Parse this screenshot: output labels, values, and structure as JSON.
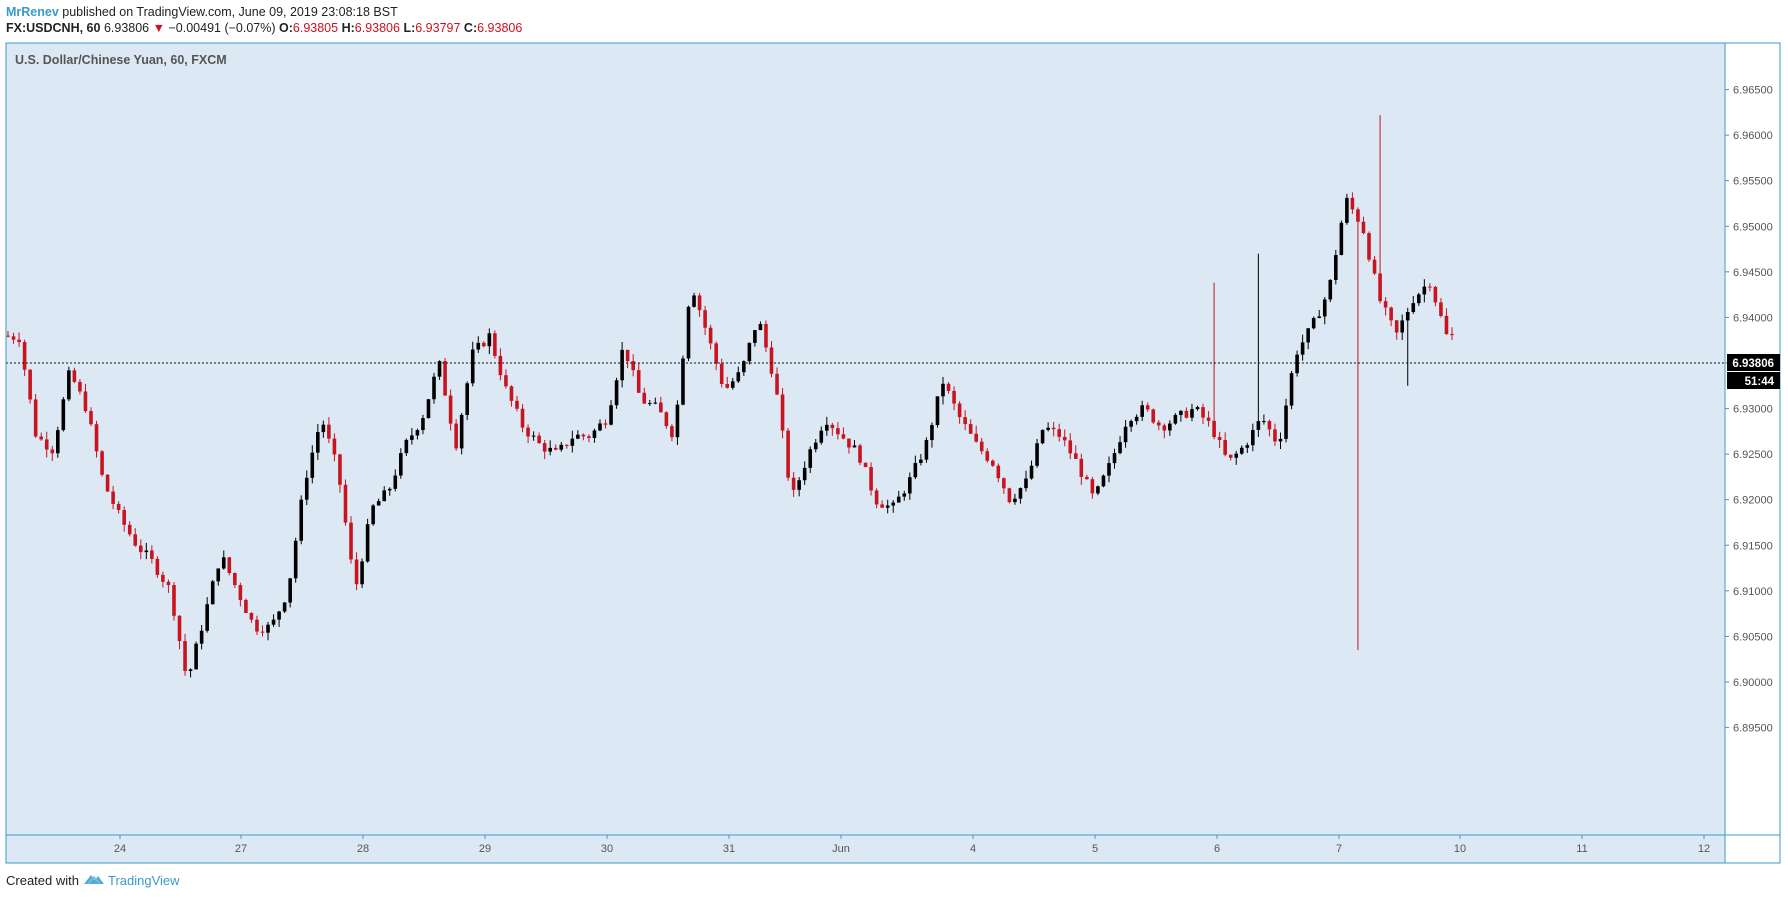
{
  "header": {
    "author": "MrRenev",
    "published_text": "published on TradingView.com, June 09, 2019 23:08:18 BST",
    "symbol": "FX:USDCNH, 60",
    "last": "6.93806",
    "change": "−0.00491 (−0.07%)",
    "open_label": "O:",
    "open": "6.93805",
    "high_label": "H:",
    "high": "6.93806",
    "low_label": "L:",
    "low": "6.93797",
    "close_label": "C:",
    "close": "6.93806"
  },
  "chart_title": "U.S. Dollar/Chinese Yuan, 60, FXCM",
  "price_label": "6.93806",
  "countdown": "51:44",
  "footer": {
    "created_with": "Created with",
    "brand": "TradingView"
  },
  "colors": {
    "background": "#dce8f4",
    "border": "#3a9bc8",
    "up": "#000000",
    "down": "#c8141f",
    "author": "#3a9bc8"
  },
  "chart_data": {
    "type": "candlestick",
    "title": "U.S. Dollar/Chinese Yuan, 60, FXCM",
    "ylim": [
      6.8915,
      6.9705
    ],
    "y_ticks": [
      "6.96500",
      "6.96000",
      "6.95500",
      "6.95000",
      "6.94500",
      "6.94000",
      "6.93500",
      "6.93000",
      "6.92500",
      "6.92000",
      "6.91500",
      "6.91000",
      "6.90500",
      "6.90000",
      "6.89500"
    ],
    "x_ticks": [
      "24",
      "27",
      "28",
      "29",
      "30",
      "31",
      "Jun",
      "4",
      "5",
      "6",
      "7",
      "10",
      "11",
      "12"
    ],
    "last_price": 6.93806,
    "grid": false,
    "close_path": [
      [
        "23",
        6.938
      ],
      [
        "23",
        6.9378
      ],
      [
        "24",
        6.927
      ],
      [
        "24",
        6.9255
      ],
      [
        "24",
        6.934
      ],
      [
        "24",
        6.93
      ],
      [
        "24",
        6.922
      ],
      [
        "24",
        6.918
      ],
      [
        "24",
        6.915
      ],
      [
        "27",
        6.913
      ],
      [
        "27",
        6.91
      ],
      [
        "27",
        6.9
      ],
      [
        "27",
        6.907
      ],
      [
        "27",
        6.914
      ],
      [
        "27",
        6.91
      ],
      [
        "28",
        6.906
      ],
      [
        "28",
        6.906
      ],
      [
        "28",
        6.91
      ],
      [
        "28",
        6.922
      ],
      [
        "28",
        6.929
      ],
      [
        "28",
        6.923
      ],
      [
        "28",
        6.91
      ],
      [
        "29",
        6.919
      ],
      [
        "29",
        6.921
      ],
      [
        "29",
        6.926
      ],
      [
        "29",
        6.929
      ],
      [
        "29",
        6.935
      ],
      [
        "29",
        6.926
      ],
      [
        "29",
        6.936
      ],
      [
        "30",
        6.938
      ],
      [
        "30",
        6.932
      ],
      [
        "30",
        6.928
      ],
      [
        "30",
        6.926
      ],
      [
        "30",
        6.925
      ],
      [
        "30",
        6.927
      ],
      [
        "31",
        6.927
      ],
      [
        "31",
        6.929
      ],
      [
        "31",
        6.937
      ],
      [
        "31",
        6.931
      ],
      [
        "31",
        6.93
      ],
      [
        "31",
        6.927
      ],
      [
        "31",
        6.944
      ],
      [
        "Jun",
        6.938
      ],
      [
        "Jun",
        6.932
      ],
      [
        "Jun",
        6.934
      ],
      [
        "Jun",
        6.94
      ],
      [
        "Jun",
        6.933
      ],
      [
        "Jun",
        6.92
      ],
      [
        "Jun",
        6.925
      ],
      [
        "Jun",
        6.929
      ],
      [
        "Jun",
        6.927
      ],
      [
        "4",
        6.925
      ],
      [
        "4",
        6.92
      ],
      [
        "4",
        6.919
      ],
      [
        "4",
        6.922
      ],
      [
        "4",
        6.926
      ],
      [
        "4",
        6.933
      ],
      [
        "4",
        6.929
      ],
      [
        "4",
        6.926
      ],
      [
        "5",
        6.924
      ],
      [
        "5",
        6.92
      ],
      [
        "5",
        6.922
      ],
      [
        "5",
        6.928
      ],
      [
        "5",
        6.927
      ],
      [
        "5",
        6.924
      ],
      [
        "5",
        6.92
      ],
      [
        "6",
        6.924
      ],
      [
        "6",
        6.929
      ],
      [
        "6",
        6.93
      ],
      [
        "6",
        6.928
      ],
      [
        "6",
        6.929
      ],
      [
        "6",
        6.93
      ],
      [
        "6",
        6.928
      ],
      [
        "6",
        6.924
      ],
      [
        "6",
        6.926
      ],
      [
        "7",
        6.929
      ],
      [
        "7",
        6.926
      ],
      [
        "7",
        6.936
      ],
      [
        "7",
        6.939
      ],
      [
        "7",
        6.943
      ],
      [
        "7",
        6.953
      ],
      [
        "7",
        6.95
      ],
      [
        "7",
        6.942
      ],
      [
        "7",
        6.938
      ],
      [
        "7",
        6.942
      ],
      [
        "7",
        6.944
      ],
      [
        "10",
        6.938
      ]
    ]
  }
}
